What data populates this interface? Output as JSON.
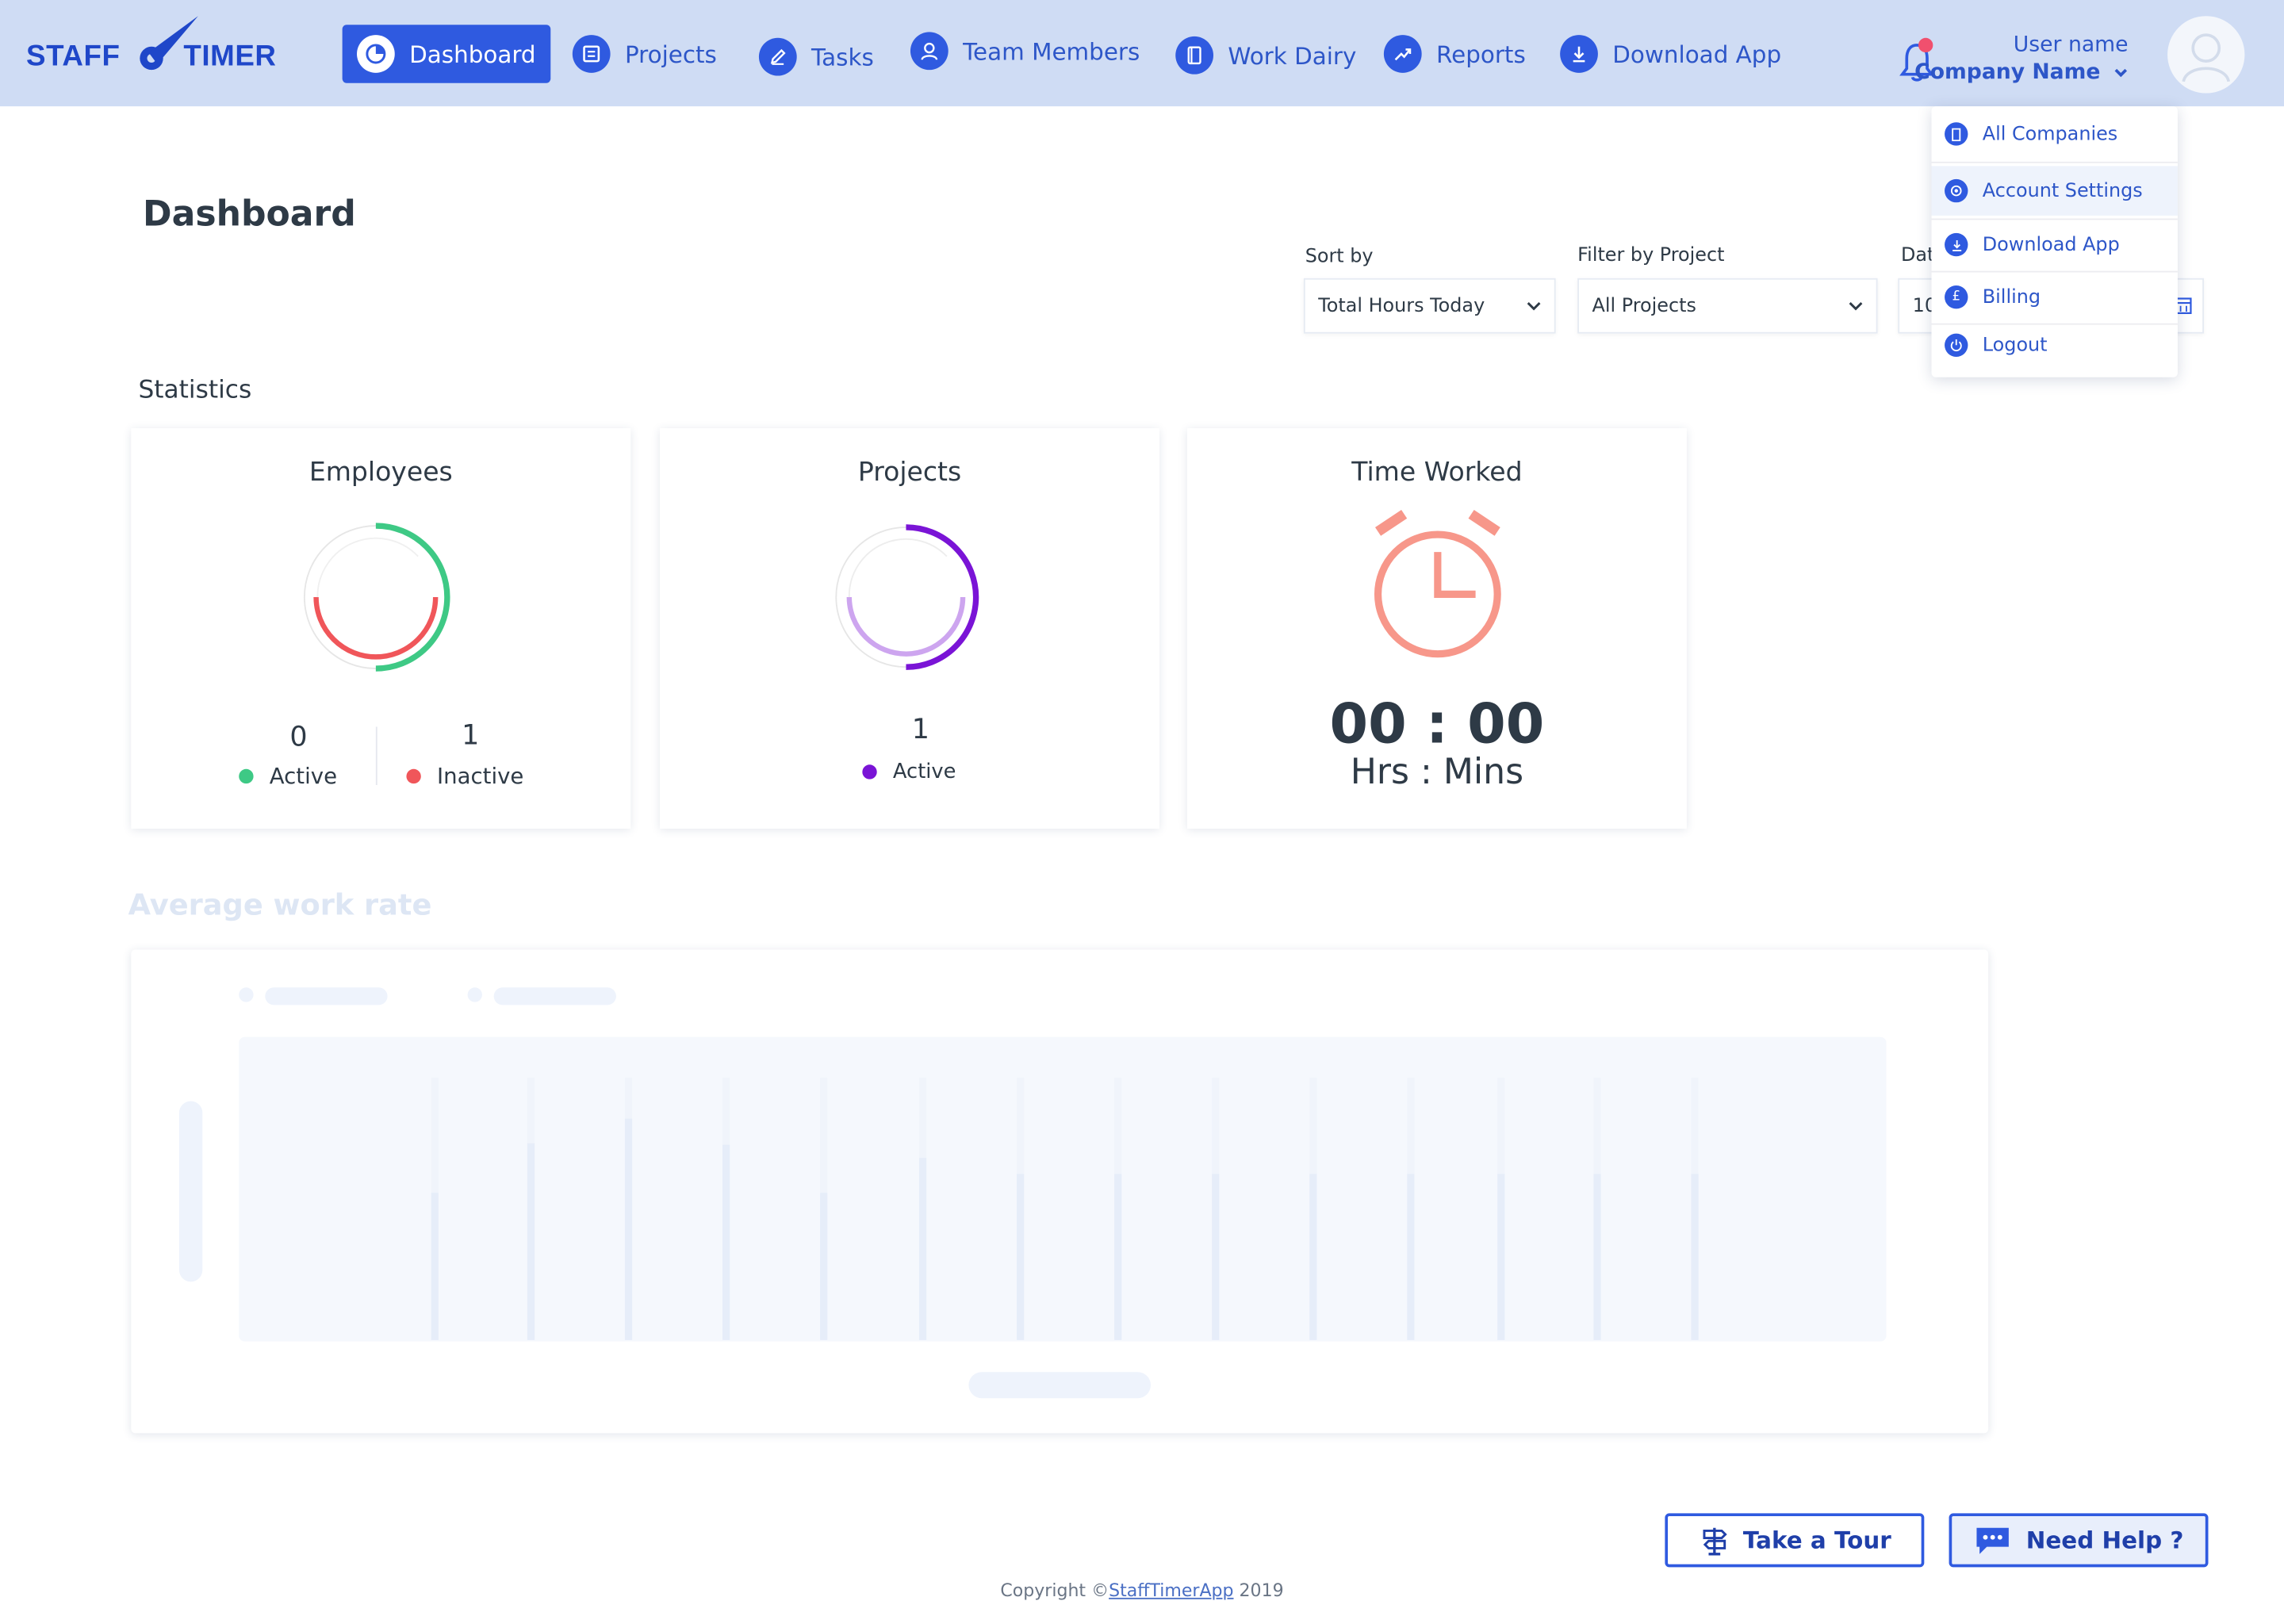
{
  "brand": {
    "logo_left": "STAFF",
    "logo_right": "TIMER"
  },
  "nav": [
    {
      "label": "Dashboard",
      "icon": "dashboard-icon",
      "active": true
    },
    {
      "label": "Projects",
      "icon": "projects-icon"
    },
    {
      "label": "Tasks",
      "icon": "tasks-icon"
    },
    {
      "label": "Team Members",
      "icon": "team-members-icon"
    },
    {
      "label": "Work Dairy",
      "icon": "work-diary-icon"
    },
    {
      "label": "Reports",
      "icon": "reports-icon"
    },
    {
      "label": "Download App",
      "icon": "download-icon"
    }
  ],
  "user": {
    "name": "User name",
    "company": "Company Name"
  },
  "user_menu": [
    {
      "label": "All Companies",
      "icon": "companies-icon"
    },
    {
      "label": "Account Settings",
      "icon": "settings-icon"
    },
    {
      "label": "Download App",
      "icon": "download-icon"
    },
    {
      "label": "Billing",
      "icon": "billing-icon",
      "glyph": "£"
    },
    {
      "label": "Logout",
      "icon": "logout-icon"
    }
  ],
  "page": {
    "title": "Dashboard"
  },
  "filters": {
    "sort_label": "Sort by",
    "sort_value": "Total Hours Today",
    "project_label": "Filter by Project",
    "project_value": "All Projects",
    "date_label": "Dat",
    "date_value": "10"
  },
  "statistics": {
    "title": "Statistics",
    "employees": {
      "title": "Employees",
      "active_count": "0",
      "active_label": "Active",
      "inactive_count": "1",
      "inactive_label": "Inactive"
    },
    "projects": {
      "title": "Projects",
      "active_count": "1",
      "active_label": "Active"
    },
    "time_worked": {
      "title": "Time Worked",
      "value": "00 : 00",
      "unit": "Hrs : Mins"
    }
  },
  "average_work_rate": {
    "title": "Average work rate"
  },
  "actions": {
    "tour": "Take a Tour",
    "help": "Need Help ?"
  },
  "footer": {
    "prefix": "Copyright ©",
    "link": "StaffTimerApp",
    "suffix": " 2019"
  },
  "colors": {
    "accent": "#2f5ae0",
    "header_bg": "#cfdcf4",
    "active_green": "#3ec985",
    "inactive_red": "#f0565a",
    "project_purple": "#7a14d6",
    "clock_salmon": "#f7978a"
  }
}
